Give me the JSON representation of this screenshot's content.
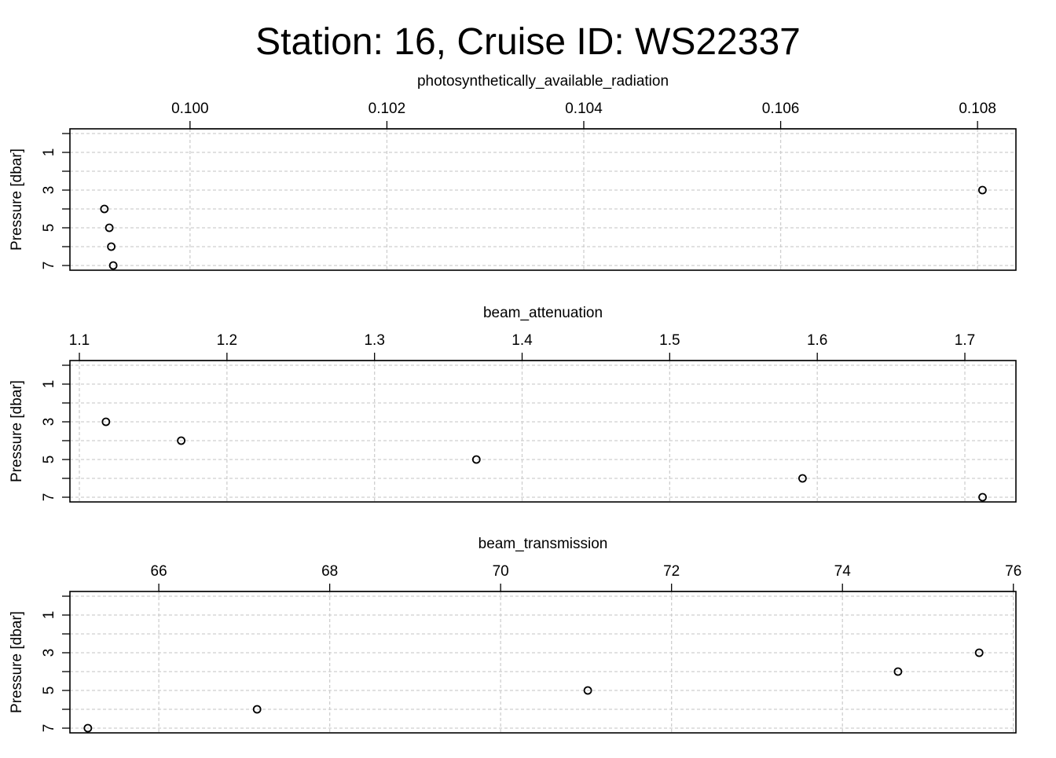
{
  "title": "Station: 16, Cruise ID: WS22337",
  "chart_data": [
    {
      "type": "scatter",
      "xlabel": "photosynthetically_available_radiation",
      "ylabel": "Pressure [dbar]",
      "xlim": [
        0.09878,
        0.10839
      ],
      "ylim": [
        7.25,
        -0.25
      ],
      "xticks": [
        "0.100",
        "0.102",
        "0.104",
        "0.106",
        "0.108"
      ],
      "xtick_values": [
        0.1,
        0.102,
        0.104,
        0.106,
        0.108
      ],
      "yticks": [
        "1",
        "3",
        "5",
        "7"
      ],
      "ytick_values": [
        1,
        3,
        5,
        7
      ],
      "grid": true,
      "points": {
        "x": [
          0.10805,
          0.09913,
          0.09918,
          0.0992,
          0.09922
        ],
        "y": [
          3,
          4,
          5,
          6,
          7
        ]
      }
    },
    {
      "type": "scatter",
      "xlabel": "beam_attenuation",
      "ylabel": "Pressure [dbar]",
      "xlim": [
        1.0936,
        1.7346
      ],
      "ylim": [
        7.25,
        -0.25
      ],
      "xticks": [
        "1.1",
        "1.2",
        "1.3",
        "1.4",
        "1.5",
        "1.6",
        "1.7"
      ],
      "xtick_values": [
        1.1,
        1.2,
        1.3,
        1.4,
        1.5,
        1.6,
        1.7
      ],
      "yticks": [
        "1",
        "3",
        "5",
        "7"
      ],
      "ytick_values": [
        1,
        3,
        5,
        7
      ],
      "grid": true,
      "points": {
        "x": [
          1.118,
          1.169,
          1.369,
          1.59,
          1.712
        ],
        "y": [
          3,
          4,
          5,
          6,
          7
        ]
      }
    },
    {
      "type": "scatter",
      "xlabel": "beam_transmission",
      "ylabel": "Pressure [dbar]",
      "xlim": [
        64.96,
        76.03
      ],
      "ylim": [
        7.25,
        -0.25
      ],
      "xticks": [
        "66",
        "68",
        "70",
        "72",
        "74",
        "76"
      ],
      "xtick_values": [
        66,
        68,
        70,
        72,
        74,
        76
      ],
      "yticks": [
        "1",
        "3",
        "5",
        "7"
      ],
      "ytick_values": [
        1,
        3,
        5,
        7
      ],
      "grid": true,
      "points": {
        "x": [
          75.6,
          74.65,
          71.02,
          67.15,
          65.17
        ],
        "y": [
          3,
          4,
          5,
          6,
          7
        ]
      }
    }
  ]
}
